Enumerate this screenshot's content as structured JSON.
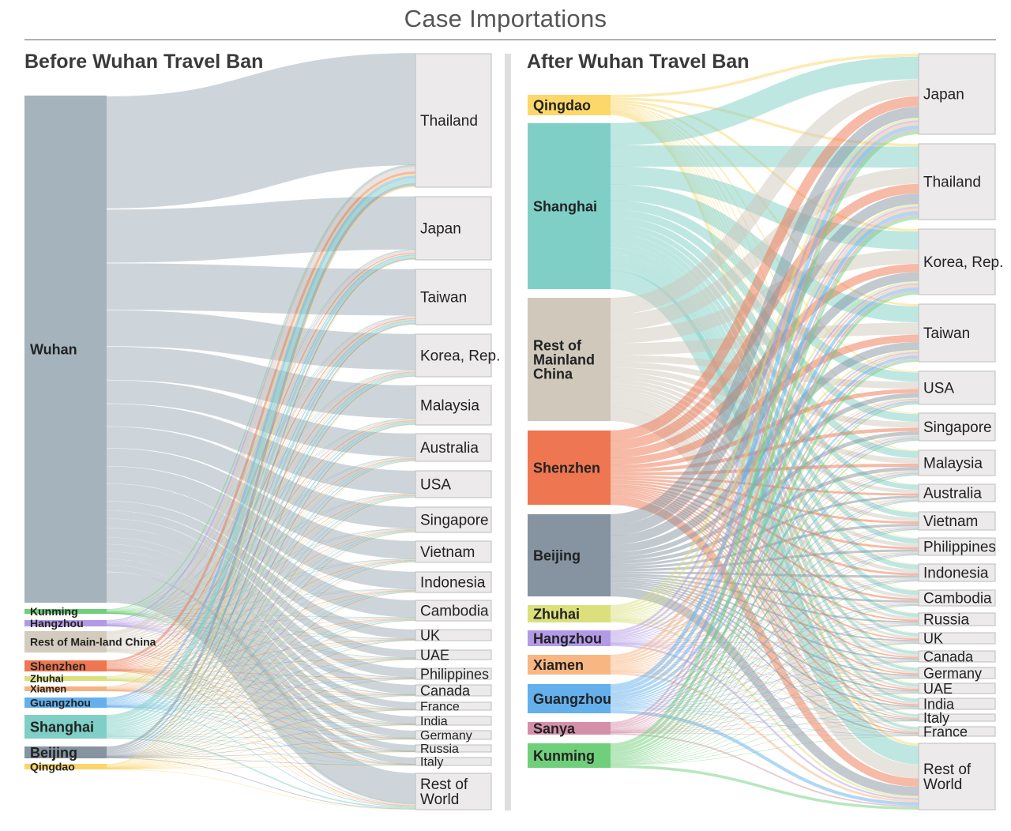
{
  "title": "Case Importations",
  "panels": [
    {
      "title": "Before Wuhan Travel Ban",
      "sources": [
        {
          "name": "Wuhan",
          "color": "#a5b3bc"
        },
        {
          "name": "Kunming",
          "color": "#6fcf7a"
        },
        {
          "name": "Hangzhou",
          "color": "#b39ae6"
        },
        {
          "name": "Rest of Main-land China",
          "color": "#d3cbbd"
        },
        {
          "name": "Shenzhen",
          "color": "#ee7650"
        },
        {
          "name": "Zhuhai",
          "color": "#dbe07d"
        },
        {
          "name": "Xiamen",
          "color": "#f6b27f"
        },
        {
          "name": "Guangzhou",
          "color": "#63b0ec"
        },
        {
          "name": "Shanghai",
          "color": "#7fcfc6"
        },
        {
          "name": "Beijing",
          "color": "#8693a0"
        },
        {
          "name": "Qingdao",
          "color": "#fbd46a"
        }
      ],
      "destinations": [
        "Thailand",
        "Japan",
        "Taiwan",
        "Korea, Rep.",
        "Malaysia",
        "Australia",
        "USA",
        "Singapore",
        "Vietnam",
        "Indonesia",
        "Cambodia",
        "UK",
        "UAE",
        "Philippines",
        "Canada",
        "France",
        "India",
        "Germany",
        "Russia",
        "Italy",
        "Rest of World"
      ]
    },
    {
      "title": "After Wuhan Travel Ban",
      "sources": [
        {
          "name": "Qingdao",
          "color": "#fcd86a"
        },
        {
          "name": "Shanghai",
          "color": "#7fcfc6"
        },
        {
          "name": "Rest of Mainland China",
          "color": "#d0c8bb"
        },
        {
          "name": "Shenzhen",
          "color": "#ee7650"
        },
        {
          "name": "Beijing",
          "color": "#8693a0"
        },
        {
          "name": "Zhuhai",
          "color": "#dbe07d"
        },
        {
          "name": "Hangzhou",
          "color": "#b39ae6"
        },
        {
          "name": "Xiamen",
          "color": "#f8b682"
        },
        {
          "name": "Guangzhou",
          "color": "#63b0ec"
        },
        {
          "name": "Sanya",
          "color": "#d590a9"
        },
        {
          "name": "Kunming",
          "color": "#6fcf7a"
        }
      ],
      "destinations": [
        "Japan",
        "Thailand",
        "Korea, Rep.",
        "Taiwan",
        "USA",
        "Singapore",
        "Malaysia",
        "Australia",
        "Vietnam",
        "Philippines",
        "Indonesia",
        "Cambodia",
        "Russia",
        "UK",
        "Canada",
        "Germany",
        "UAE",
        "India",
        "Italy",
        "France",
        "Rest of World"
      ]
    }
  ]
}
